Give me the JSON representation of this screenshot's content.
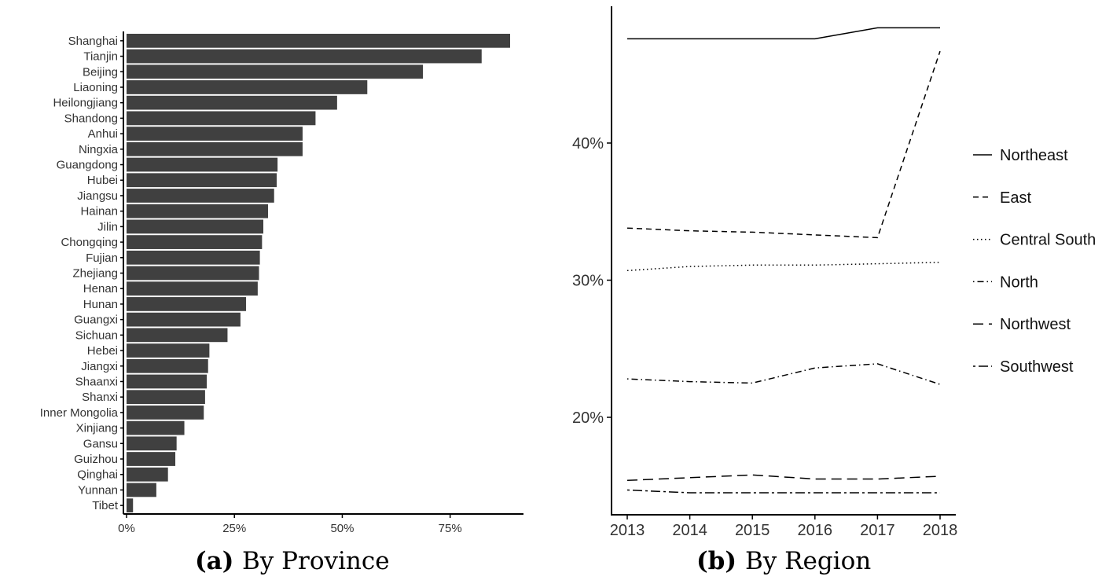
{
  "colors": {
    "bar": "#404040",
    "axis": "#000000",
    "line": "#000000"
  },
  "captions": {
    "a_tag": "(a)",
    "a_text": "By Province",
    "b_tag": "(b)",
    "b_text": "By Region"
  },
  "chart_data": [
    {
      "type": "bar",
      "orientation": "horizontal",
      "categories": [
        "Shanghai",
        "Tianjin",
        "Beijing",
        "Liaoning",
        "Heilongjiang",
        "Shandong",
        "Anhui",
        "Ningxia",
        "Guangdong",
        "Hubei",
        "Jiangsu",
        "Hainan",
        "Jilin",
        "Chongqing",
        "Fujian",
        "Zhejiang",
        "Henan",
        "Hunan",
        "Guangxi",
        "Sichuan",
        "Hebei",
        "Jiangxi",
        "Shaanxi",
        "Shanxi",
        "Inner Mongolia",
        "Xinjiang",
        "Gansu",
        "Guizhou",
        "Qinghai",
        "Yunnan",
        "Tibet"
      ],
      "values": [
        88.9,
        82.3,
        68.7,
        55.8,
        48.8,
        43.8,
        40.8,
        40.8,
        35.0,
        34.8,
        34.2,
        32.8,
        31.7,
        31.4,
        30.9,
        30.7,
        30.4,
        27.7,
        26.4,
        23.4,
        19.2,
        18.9,
        18.6,
        18.2,
        17.9,
        13.4,
        11.6,
        11.3,
        9.6,
        6.9,
        1.5
      ],
      "xlim": [
        0,
        92
      ],
      "xticks": [
        0,
        25,
        50,
        75
      ],
      "xtick_labels": [
        "0%",
        "25%",
        "50%",
        "75%"
      ],
      "title": "",
      "xlabel": "",
      "ylabel": "",
      "grid": false
    },
    {
      "type": "line",
      "x": [
        2013,
        2014,
        2015,
        2016,
        2017,
        2018
      ],
      "xtick_labels": [
        "2013",
        "2014",
        "2015",
        "2016",
        "2017",
        "2018"
      ],
      "series": [
        {
          "name": "Northeast",
          "dash": "solid",
          "values": [
            47.6,
            47.6,
            47.6,
            47.6,
            48.4,
            48.4
          ]
        },
        {
          "name": "East",
          "dash": "dashed",
          "values": [
            33.8,
            33.6,
            33.5,
            33.3,
            33.1,
            46.7
          ]
        },
        {
          "name": "Central South",
          "dash": "dotted",
          "values": [
            30.7,
            31.0,
            31.1,
            31.1,
            31.2,
            31.3
          ]
        },
        {
          "name": "North",
          "dash": "dotdash",
          "values": [
            22.8,
            22.6,
            22.5,
            23.6,
            23.9,
            22.4
          ]
        },
        {
          "name": "Northwest",
          "dash": "longdash",
          "values": [
            15.4,
            15.6,
            15.8,
            15.5,
            15.5,
            15.7
          ]
        },
        {
          "name": "Southwest",
          "dash": "twodash",
          "values": [
            14.7,
            14.5,
            14.5,
            14.5,
            14.5,
            14.5
          ]
        }
      ],
      "yticks": [
        20,
        30,
        40
      ],
      "ytick_labels": [
        "20%",
        "30%",
        "40%"
      ],
      "ylim": [
        13.2,
        49.8
      ],
      "legend_position": "right",
      "title": "",
      "xlabel": "",
      "ylabel": "",
      "grid": false
    }
  ]
}
